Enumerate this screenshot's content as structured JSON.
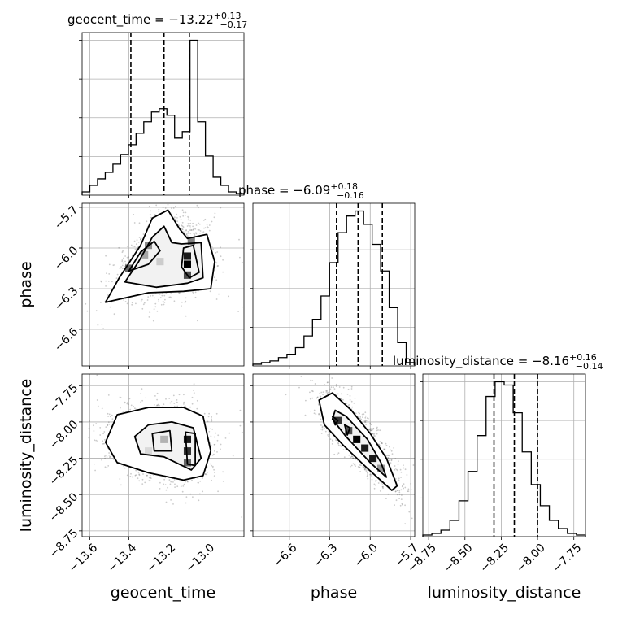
{
  "chart_data": {
    "type": "corner",
    "parameters": [
      {
        "name": "geocent_time",
        "xlabel": "geocent_time",
        "title_main": "geocent_time = −13.22",
        "title_sup": "+0.13",
        "title_sub": "−0.17",
        "range": [
          -13.64,
          -12.81
        ],
        "ticks": [
          -13.6,
          -13.4,
          -13.2,
          -13.0
        ],
        "tick_labels": [
          "−13.6",
          "−13.4",
          "−13.2",
          "−13.0"
        ],
        "quantiles": [
          -13.39,
          -13.22,
          -13.09
        ],
        "hist_density": [
          0.02,
          0.06,
          0.1,
          0.14,
          0.19,
          0.25,
          0.31,
          0.38,
          0.45,
          0.51,
          0.53,
          0.49,
          0.35,
          0.39,
          0.95,
          0.45,
          0.24,
          0.11,
          0.06,
          0.02,
          0.01
        ]
      },
      {
        "name": "phase",
        "xlabel": "phase",
        "ylabel": "phase",
        "title_main": "phase = −6.09",
        "title_sup": "+0.18",
        "title_sub": "−0.16",
        "range": [
          -6.87,
          -5.67
        ],
        "ticks": [
          -6.6,
          -6.3,
          -6.0,
          -5.7
        ],
        "tick_labels": [
          "−6.6",
          "−6.3",
          "−6.0",
          "−5.7"
        ],
        "quantiles": [
          -6.25,
          -6.09,
          -5.91
        ],
        "hist_density": [
          0.01,
          0.02,
          0.03,
          0.05,
          0.07,
          0.11,
          0.18,
          0.28,
          0.42,
          0.62,
          0.8,
          0.9,
          0.93,
          0.85,
          0.73,
          0.57,
          0.35,
          0.14,
          0.02
        ]
      },
      {
        "name": "luminosity_distance",
        "xlabel": "luminosity_distance",
        "ylabel": "luminosity_distance",
        "title_main": "luminosity_distance = −8.16",
        "title_sup": "+0.16",
        "title_sub": "−0.14",
        "range": [
          -8.79,
          -7.67
        ],
        "ticks": [
          -8.75,
          -8.5,
          -8.25,
          -8.0,
          -7.75
        ],
        "tick_labels": [
          "−8.75",
          "−8.50",
          "−8.25",
          "−8.00",
          "−7.75"
        ],
        "quantiles": [
          -8.3,
          -8.16,
          -8.0
        ],
        "hist_density": [
          0.01,
          0.02,
          0.04,
          0.1,
          0.22,
          0.4,
          0.62,
          0.86,
          0.95,
          0.93,
          0.76,
          0.52,
          0.32,
          0.19,
          0.1,
          0.05,
          0.02,
          0.01
        ]
      }
    ],
    "grid": true,
    "contours": [
      {
        "x": "geocent_time",
        "y": "phase",
        "levels": [
          [
            [
              -13.52,
              -6.4
            ],
            [
              -13.45,
              -6.22
            ],
            [
              -13.34,
              -5.98
            ],
            [
              -13.28,
              -5.78
            ],
            [
              -13.2,
              -5.72
            ],
            [
              -13.14,
              -5.86
            ],
            [
              -13.1,
              -5.93
            ],
            [
              -13.0,
              -5.9
            ],
            [
              -12.96,
              -6.1
            ],
            [
              -12.98,
              -6.3
            ],
            [
              -13.12,
              -6.32
            ],
            [
              -13.3,
              -6.33
            ]
          ],
          [
            [
              -13.42,
              -6.25
            ],
            [
              -13.35,
              -6.1
            ],
            [
              -13.28,
              -5.92
            ],
            [
              -13.22,
              -5.84
            ],
            [
              -13.18,
              -5.96
            ],
            [
              -13.13,
              -5.97
            ],
            [
              -13.03,
              -5.96
            ],
            [
              -13.02,
              -6.22
            ],
            [
              -13.1,
              -6.26
            ],
            [
              -13.26,
              -6.29
            ]
          ],
          [
            [
              -13.4,
              -6.17
            ],
            [
              -13.34,
              -6.03
            ],
            [
              -13.27,
              -5.95
            ],
            [
              -13.24,
              -6.02
            ],
            [
              -13.3,
              -6.12
            ]
          ],
          [
            [
              -13.12,
              -6.0
            ],
            [
              -13.07,
              -5.98
            ],
            [
              -13.04,
              -6.18
            ],
            [
              -13.09,
              -6.22
            ],
            [
              -13.13,
              -6.14
            ]
          ]
        ]
      },
      {
        "x": "geocent_time",
        "y": "luminosity_distance",
        "levels": [
          [
            [
              -13.52,
              -8.14
            ],
            [
              -13.46,
              -7.95
            ],
            [
              -13.3,
              -7.9
            ],
            [
              -13.12,
              -7.9
            ],
            [
              -13.02,
              -7.96
            ],
            [
              -12.98,
              -8.2
            ],
            [
              -13.02,
              -8.37
            ],
            [
              -13.12,
              -8.4
            ],
            [
              -13.3,
              -8.35
            ],
            [
              -13.46,
              -8.28
            ]
          ],
          [
            [
              -13.37,
              -8.1
            ],
            [
              -13.3,
              -8.02
            ],
            [
              -13.18,
              -8.0
            ],
            [
              -13.07,
              -8.04
            ],
            [
              -13.03,
              -8.25
            ],
            [
              -13.08,
              -8.33
            ],
            [
              -13.22,
              -8.24
            ],
            [
              -13.34,
              -8.22
            ]
          ],
          [
            [
              -13.27,
              -8.2
            ],
            [
              -13.28,
              -8.08
            ],
            [
              -13.19,
              -8.06
            ],
            [
              -13.18,
              -8.2
            ]
          ],
          [
            [
              -13.11,
              -8.07
            ],
            [
              -13.06,
              -8.08
            ],
            [
              -13.06,
              -8.3
            ],
            [
              -13.1,
              -8.29
            ]
          ]
        ]
      },
      {
        "x": "phase",
        "y": "luminosity_distance",
        "levels": [
          [
            [
              -6.38,
              -7.85
            ],
            [
              -6.28,
              -7.8
            ],
            [
              -6.14,
              -7.92
            ],
            [
              -6.0,
              -8.08
            ],
            [
              -5.88,
              -8.25
            ],
            [
              -5.8,
              -8.44
            ],
            [
              -5.84,
              -8.47
            ],
            [
              -6.02,
              -8.32
            ],
            [
              -6.2,
              -8.16
            ],
            [
              -6.34,
              -8.02
            ]
          ],
          [
            [
              -6.26,
              -7.92
            ],
            [
              -6.18,
              -7.96
            ],
            [
              -6.02,
              -8.12
            ],
            [
              -5.92,
              -8.28
            ],
            [
              -5.88,
              -8.38
            ],
            [
              -6.0,
              -8.28
            ],
            [
              -6.18,
              -8.1
            ],
            [
              -6.28,
              -7.98
            ]
          ],
          [
            [
              -6.28,
              -7.96
            ],
            [
              -6.24,
              -7.99
            ],
            [
              -6.26,
              -8.02
            ]
          ],
          [
            [
              -6.19,
              -8.02
            ],
            [
              -6.15,
              -8.04
            ],
            [
              -6.17,
              -8.09
            ]
          ]
        ]
      }
    ],
    "density_blocks": [
      {
        "x": "geocent_time",
        "y": "phase",
        "cells": [
          [
            -13.1,
            -6.12,
            1.0
          ],
          [
            -13.1,
            -6.06,
            0.9
          ],
          [
            -13.1,
            -6.2,
            0.7
          ],
          [
            -13.3,
            -5.98,
            0.45
          ],
          [
            -13.32,
            -6.05,
            0.35
          ],
          [
            -13.08,
            -5.95,
            0.5
          ],
          [
            -13.24,
            -6.1,
            0.2
          ],
          [
            -13.4,
            -6.15,
            0.6
          ]
        ]
      },
      {
        "x": "geocent_time",
        "y": "luminosity_distance",
        "cells": [
          [
            -13.1,
            -8.12,
            0.9
          ],
          [
            -13.1,
            -8.2,
            0.8
          ],
          [
            -13.1,
            -8.28,
            0.6
          ],
          [
            -13.22,
            -8.12,
            0.3
          ],
          [
            -13.3,
            -8.2,
            0.15
          ]
        ]
      },
      {
        "x": "phase",
        "y": "luminosity_distance",
        "cells": [
          [
            -6.24,
            -7.99,
            0.8
          ],
          [
            -6.16,
            -8.06,
            0.7
          ],
          [
            -6.1,
            -8.12,
            1.0
          ],
          [
            -6.04,
            -8.18,
            0.9
          ],
          [
            -5.98,
            -8.25,
            0.9
          ],
          [
            -5.92,
            -8.32,
            0.4
          ]
        ]
      }
    ]
  }
}
